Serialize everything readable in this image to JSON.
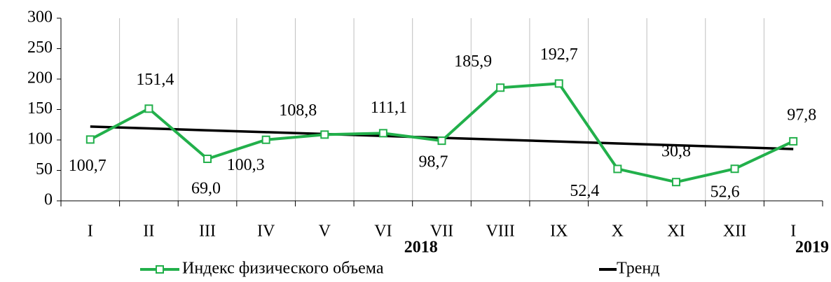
{
  "chart_data": {
    "type": "line",
    "categories": [
      "I",
      "II",
      "III",
      "IV",
      "V",
      "VI",
      "VII",
      "VIII",
      "IX",
      "X",
      "XI",
      "XII",
      "I"
    ],
    "category_groups": [
      "2018",
      "2019"
    ],
    "series": [
      {
        "name": "Индекс физического объема",
        "color": "#22b04b",
        "values": [
          100.7,
          151.4,
          69.0,
          100.3,
          108.8,
          111.1,
          98.7,
          185.9,
          192.7,
          52.4,
          30.8,
          52.6,
          97.8
        ],
        "value_labels": [
          "100,7",
          "151,4",
          "69,0",
          "100,3",
          "108,8",
          "111,1",
          "98,7",
          "185,9",
          "192,7",
          "52,4",
          "30,8",
          "52,6",
          "97,8"
        ]
      },
      {
        "name": "Тренд",
        "color": "#000000",
        "values": [
          122.0,
          118.9,
          115.8,
          112.8,
          109.7,
          106.6,
          103.5,
          100.5,
          97.4,
          94.3,
          91.2,
          88.2,
          85.1
        ]
      }
    ],
    "ylim": [
      0,
      300
    ],
    "yticks": [
      0,
      50,
      100,
      150,
      200,
      250,
      300
    ],
    "grid": true
  }
}
